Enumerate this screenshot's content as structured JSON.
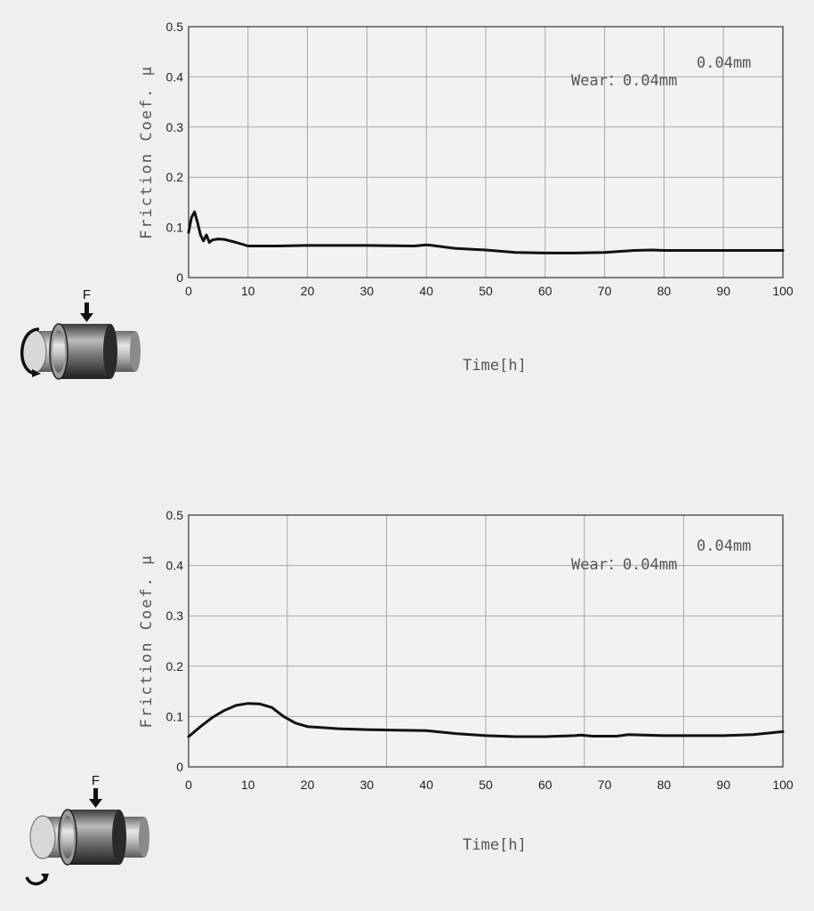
{
  "colors": {
    "background": "#efefef",
    "grid": "#a8a8a8",
    "line": "#111111",
    "frame": "#333333"
  },
  "icons": {
    "top": "bearing-rotating-shaft-icon",
    "bottom": "bearing-oscillating-shaft-icon"
  },
  "chart_data": [
    {
      "type": "line",
      "xlabel": "Time[h]",
      "ylabel": "Friction Coef. μ",
      "xlim": [
        0,
        100
      ],
      "ylim": [
        0,
        0.5
      ],
      "xticks": [
        "0",
        "10",
        "20",
        "30",
        "40",
        "50",
        "60",
        "70",
        "80",
        "90",
        "100"
      ],
      "yticks": [
        "0",
        "0.1",
        "0.2",
        "0.3",
        "0.4",
        "0.5"
      ],
      "grid": true,
      "annotations": [
        "Wear：0.04mm",
        "0.04mm"
      ],
      "icon_label": "F",
      "series": [
        {
          "x": [
            0,
            0.5,
            1,
            1.5,
            2,
            2.5,
            3,
            3.5,
            4,
            5,
            6,
            8,
            10,
            15,
            20,
            30,
            38,
            40,
            41,
            45,
            50,
            55,
            60,
            65,
            70,
            75,
            78,
            80,
            90,
            100
          ],
          "y": [
            0.09,
            0.12,
            0.131,
            0.11,
            0.085,
            0.073,
            0.085,
            0.07,
            0.075,
            0.077,
            0.076,
            0.07,
            0.063,
            0.063,
            0.064,
            0.064,
            0.063,
            0.065,
            0.064,
            0.058,
            0.055,
            0.05,
            0.049,
            0.049,
            0.05,
            0.054,
            0.055,
            0.054,
            0.054,
            0.054
          ]
        }
      ]
    },
    {
      "type": "line",
      "xlabel": "Time[h]",
      "ylabel": "Friction Coef. μ",
      "xlim": [
        0,
        100
      ],
      "ylim": [
        0,
        0.5
      ],
      "xticks": [
        "0",
        "10",
        "20",
        "30",
        "40",
        "50",
        "60",
        "70",
        "80",
        "90",
        "100"
      ],
      "yticks": [
        "0",
        "0.1",
        "0.2",
        "0.3",
        "0.4",
        "0.5"
      ],
      "grid": true,
      "annotations": [
        "Wear：0.04mm",
        "0.04mm"
      ],
      "icon_label": "F",
      "series": [
        {
          "x": [
            0,
            2,
            4,
            6,
            8,
            10,
            12,
            14,
            16,
            18,
            20,
            25,
            30,
            35,
            40,
            45,
            50,
            55,
            60,
            62,
            65,
            66,
            68,
            72,
            74,
            80,
            90,
            95,
            100
          ],
          "y": [
            0.06,
            0.08,
            0.098,
            0.112,
            0.122,
            0.126,
            0.125,
            0.118,
            0.1,
            0.087,
            0.08,
            0.076,
            0.074,
            0.073,
            0.072,
            0.066,
            0.062,
            0.06,
            0.06,
            0.061,
            0.062,
            0.063,
            0.061,
            0.061,
            0.064,
            0.062,
            0.062,
            0.064,
            0.07
          ]
        }
      ]
    }
  ]
}
